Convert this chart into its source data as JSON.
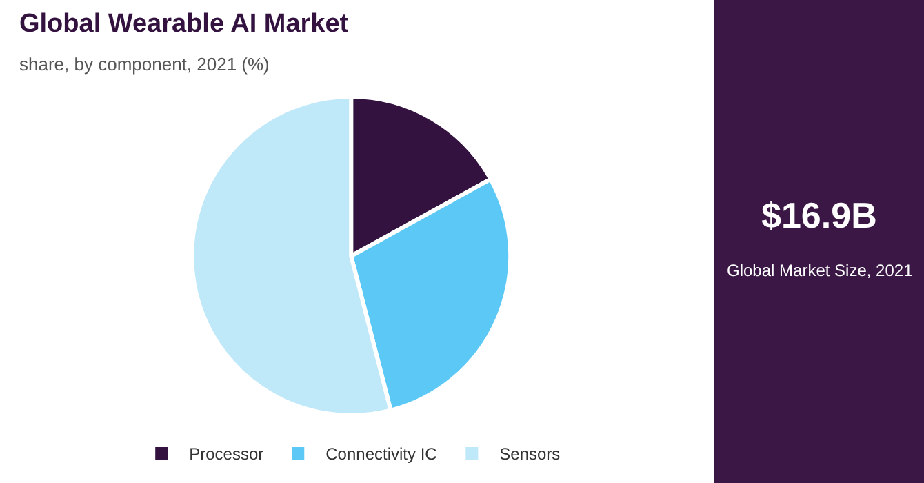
{
  "chart_data": {
    "type": "pie",
    "title": "Global Wearable AI Market",
    "subtitle": "share, by component, 2021 (%)",
    "categories": [
      "Processor",
      "Connectivity IC",
      "Sensors"
    ],
    "values": [
      17,
      29,
      54
    ],
    "colors": [
      "#33123f",
      "#5bc8f5",
      "#bfe8f9"
    ],
    "legend": "bottom",
    "annotations": [
      "$16.9B",
      "Global Market Size, 2021"
    ]
  }
}
